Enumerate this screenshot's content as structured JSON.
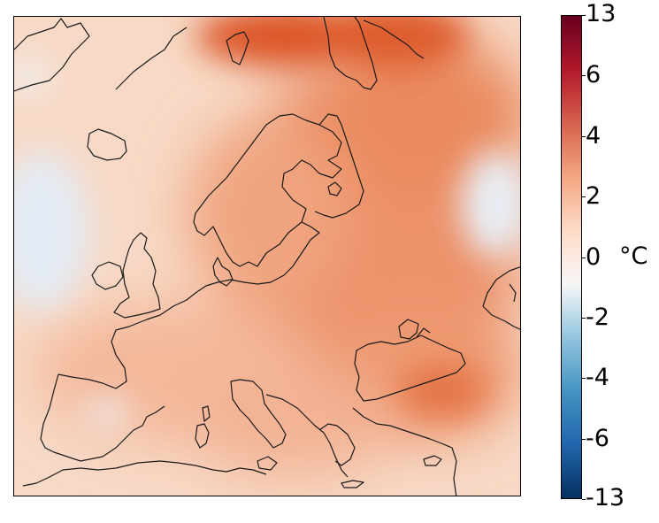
{
  "colorbar": {
    "ticks": [
      "13",
      "6",
      "4",
      "2",
      "0",
      "-2",
      "-4",
      "-6",
      "-13"
    ],
    "unit": "°C",
    "colors": [
      "#053061",
      "#2166ac",
      "#4393c3",
      "#92c5de",
      "#f7f7f7",
      "#fddbc7",
      "#f4a582",
      "#d6604d",
      "#b2182b",
      "#67001f"
    ]
  },
  "map": {
    "field_colors": {
      "base": "#f7d9c6",
      "warm": "#eb8a60",
      "hot": "#dc5527",
      "cool": "#e6ecf4"
    }
  }
}
